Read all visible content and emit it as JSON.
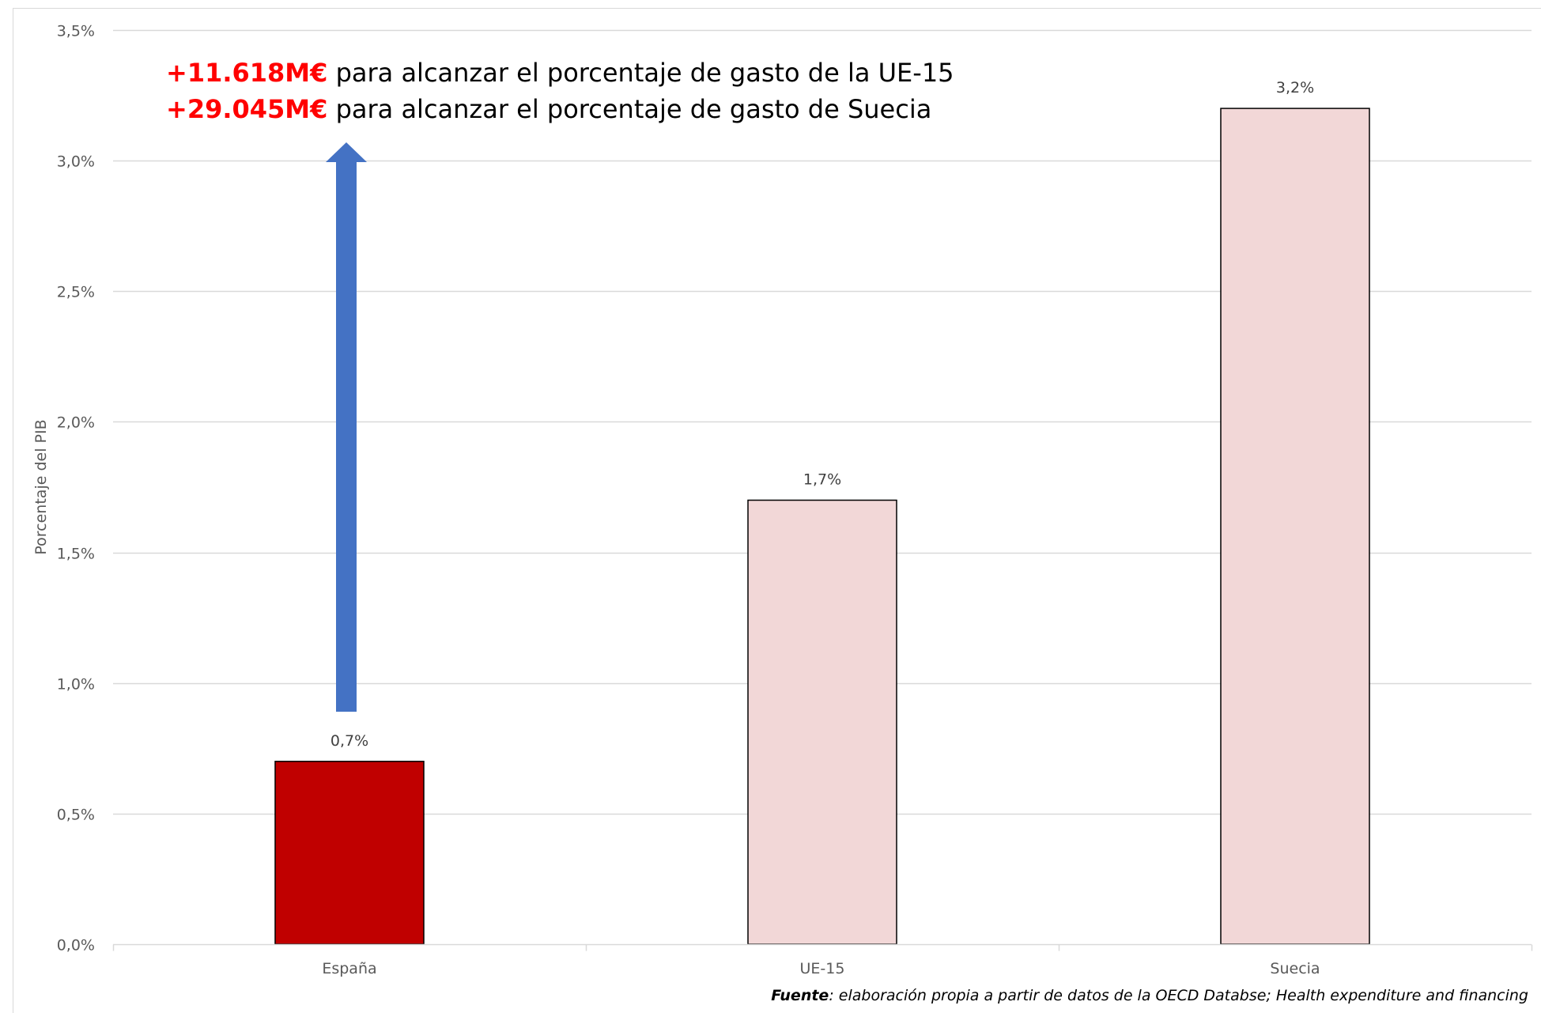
{
  "chart_data": {
    "type": "bar",
    "categories": [
      "España",
      "UE-15",
      "Suecia"
    ],
    "values": [
      0.7,
      1.7,
      3.2
    ],
    "data_labels": [
      "0,7%",
      "1,7%",
      "3,2%"
    ],
    "ylabel": "Porcentaje del PIB",
    "ylim": [
      0,
      3.5
    ],
    "yticks": [
      0,
      0.5,
      1.0,
      1.5,
      2.0,
      2.5,
      3.0,
      3.5
    ],
    "ytick_labels": [
      "0,0%",
      "0,5%",
      "1,0%",
      "1,5%",
      "2,0%",
      "2,5%",
      "3,0%",
      "3,5%"
    ],
    "grid": true,
    "colors": {
      "highlight_bar": "#c00000",
      "other_bars": "#f2d7d7",
      "bar_outline": "#000000",
      "arrow": "#4472c4",
      "gridline": "#d9d9d9"
    },
    "arrow": {
      "category": "España",
      "from": 0.89,
      "to": 3.07
    },
    "annotations": [
      {
        "amount": "+11.618M€",
        "text": " para alcanzar el porcentaje de gasto de la UE-15",
        "amount_color": "#ff0000"
      },
      {
        "amount": "+29.045M€",
        "text": " para alcanzar el porcentaje de gasto de Suecia",
        "amount_color": "#ff0000"
      }
    ],
    "source": {
      "label": "Fuente",
      "text": ": elaboración propia a partir de datos de la OECD Databse; Health expenditure and financing"
    }
  }
}
